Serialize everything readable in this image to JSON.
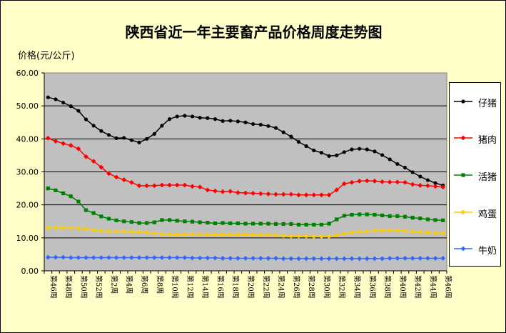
{
  "chart_data": {
    "type": "line",
    "title": "陕西省近一年主要畜产品价格周度走势图",
    "ylabel": "价格(元/公斤)",
    "xlabel": "",
    "ylim": [
      0,
      60
    ],
    "yticks": [
      "0.00",
      "10.00",
      "20.00",
      "30.00",
      "40.00",
      "50.00",
      "60.00"
    ],
    "grid": true,
    "legend_position": "right",
    "plot_background": "#c0c0c0",
    "categories": [
      "第46周",
      "第47周",
      "第48周",
      "第49周",
      "第50周",
      "第51周",
      "第52周",
      "第1周",
      "第2周",
      "第3周",
      "第4周",
      "第5周",
      "第6周",
      "第7周",
      "第8周",
      "第9周",
      "第10周",
      "第11周",
      "第12周",
      "第13周",
      "第14周",
      "第15周",
      "第16周",
      "第17周",
      "第18周",
      "第19周",
      "第20周",
      "第21周",
      "第22周",
      "第23周",
      "第24周",
      "第25周",
      "第26周",
      "第27周",
      "第28周",
      "第29周",
      "第30周",
      "第31周",
      "第32周",
      "第33周",
      "第34周",
      "第35周",
      "第36周",
      "第37周",
      "第38周",
      "第39周",
      "第40周",
      "第41周",
      "第42周",
      "第43周",
      "第44周",
      "第45周",
      "第46周"
    ],
    "xtick_labels": [
      "第46周",
      "第48周",
      "第50周",
      "第52周",
      "第2周",
      "第4周",
      "第6周",
      "第8周",
      "第10周",
      "第12周",
      "第14周",
      "第16周",
      "第18周",
      "第20周",
      "第22周",
      "第24周",
      "第26周",
      "第28周",
      "第30周",
      "第32周",
      "第34周",
      "第36周",
      "第38周",
      "第40周",
      "第42周",
      "第44周",
      "第46周"
    ],
    "series": [
      {
        "name": "仔猪",
        "color": "#000000",
        "marker": "circle",
        "values": [
          52.6,
          52.0,
          51.0,
          49.9,
          48.5,
          45.9,
          44.0,
          42.4,
          41.2,
          40.2,
          40.3,
          39.6,
          38.9,
          40.0,
          41.5,
          44.0,
          46.0,
          46.8,
          47.0,
          46.8,
          46.4,
          46.3,
          46.0,
          45.4,
          45.5,
          45.3,
          45.0,
          44.5,
          44.3,
          43.9,
          43.3,
          42.0,
          40.7,
          39.1,
          37.8,
          36.5,
          35.8,
          34.8,
          35.0,
          36.0,
          36.8,
          37.0,
          36.8,
          36.2,
          35.1,
          33.8,
          32.4,
          31.3,
          29.9,
          28.6,
          27.5,
          26.6,
          25.9
        ]
      },
      {
        "name": "猪肉",
        "color": "#ff0000",
        "marker": "diamond",
        "values": [
          40.2,
          39.3,
          38.6,
          38.0,
          37.0,
          34.6,
          33.2,
          31.4,
          29.5,
          28.4,
          27.6,
          26.8,
          25.8,
          25.8,
          25.8,
          26.0,
          26.0,
          26.0,
          26.0,
          25.6,
          25.4,
          24.5,
          24.2,
          24.0,
          24.1,
          23.7,
          23.6,
          23.5,
          23.4,
          23.3,
          23.2,
          23.2,
          23.2,
          23.0,
          23.0,
          23.0,
          23.0,
          23.0,
          24.5,
          26.4,
          26.8,
          27.2,
          27.3,
          27.2,
          27.0,
          26.9,
          26.9,
          26.8,
          26.2,
          25.9,
          25.8,
          25.6,
          25.4
        ]
      },
      {
        "name": "活猪",
        "color": "#008000",
        "marker": "square",
        "values": [
          25.0,
          24.4,
          23.5,
          22.6,
          21.0,
          18.4,
          17.5,
          16.5,
          15.8,
          15.3,
          15.0,
          14.8,
          14.5,
          14.5,
          14.7,
          15.4,
          15.4,
          15.2,
          15.0,
          14.9,
          14.7,
          14.6,
          14.4,
          14.5,
          14.4,
          14.4,
          14.3,
          14.3,
          14.3,
          14.3,
          14.2,
          14.2,
          14.2,
          14.0,
          14.0,
          14.0,
          14.0,
          14.3,
          15.6,
          16.7,
          17.0,
          17.1,
          17.1,
          17.0,
          16.8,
          16.6,
          16.6,
          16.4,
          16.1,
          15.9,
          15.6,
          15.4,
          15.3
        ]
      },
      {
        "name": "鸡蛋",
        "color": "#ffcc00",
        "marker": "diamond",
        "values": [
          13.0,
          13.0,
          13.0,
          13.0,
          12.9,
          12.7,
          12.3,
          12.1,
          12.0,
          12.0,
          12.0,
          11.9,
          11.8,
          11.6,
          11.3,
          11.1,
          11.0,
          11.0,
          11.0,
          11.1,
          11.1,
          11.0,
          11.0,
          11.0,
          11.0,
          11.0,
          11.0,
          10.9,
          10.9,
          10.8,
          10.8,
          10.6,
          10.5,
          10.5,
          10.5,
          10.4,
          10.4,
          10.4,
          10.8,
          11.3,
          11.6,
          11.8,
          12.0,
          12.2,
          12.3,
          12.3,
          12.2,
          12.1,
          11.9,
          11.7,
          11.6,
          11.5,
          11.4
        ]
      },
      {
        "name": "牛奶",
        "color": "#3366ff",
        "marker": "diamond",
        "values": [
          4.1,
          4.1,
          4.1,
          4.0,
          4.0,
          4.0,
          4.0,
          4.0,
          4.0,
          4.0,
          4.0,
          4.0,
          4.0,
          4.0,
          4.0,
          4.0,
          4.0,
          4.0,
          4.0,
          3.9,
          3.9,
          3.9,
          3.9,
          3.8,
          3.8,
          3.8,
          3.8,
          3.8,
          3.8,
          3.8,
          3.8,
          3.7,
          3.7,
          3.7,
          3.7,
          3.7,
          3.7,
          3.7,
          3.7,
          3.7,
          3.7,
          3.7,
          3.7,
          3.7,
          3.7,
          3.8,
          3.8,
          3.8,
          3.8,
          3.8,
          3.8,
          3.8,
          3.8
        ]
      }
    ]
  }
}
